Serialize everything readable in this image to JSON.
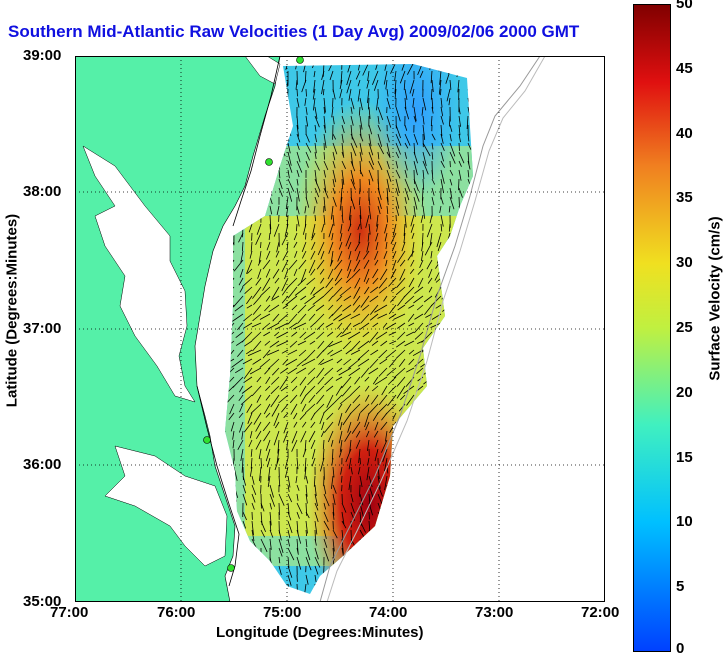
{
  "title": "Southern Mid-Atlantic Raw Velocities (1 Day Avg) 2009/02/06 2000 GMT",
  "xlabel": "Longitude (Degrees:Minutes)",
  "ylabel": "Latitude (Degrees:Minutes)",
  "colorbar": {
    "label": "Surface Velocity (cm/s)",
    "ticks": [
      "0",
      "5",
      "10",
      "15",
      "20",
      "25",
      "30",
      "35",
      "40",
      "45",
      "50"
    ],
    "min": 0,
    "max": 50
  },
  "x_ticks": [
    "77:00",
    "76:00",
    "75:00",
    "74:00",
    "73:00",
    "72:00"
  ],
  "y_ticks": [
    "39:00",
    "38:00",
    "37:00",
    "36:00",
    "35:00"
  ],
  "colors": {
    "land": "#55f0a8",
    "title": "#1010e0",
    "grid": "#000000"
  },
  "chart_data": {
    "type": "heatmap",
    "title": "Southern Mid-Atlantic Raw Velocities (1 Day Avg) 2009/02/06 2000 GMT",
    "xlabel": "Longitude (Degrees:Minutes)",
    "ylabel": "Latitude (Degrees:Minutes)",
    "xlim": [
      -77,
      -72
    ],
    "ylim": [
      35,
      39
    ],
    "colorbar_range": [
      0,
      50
    ],
    "grid": "dotted",
    "land_color": "#55f0a8"
  }
}
